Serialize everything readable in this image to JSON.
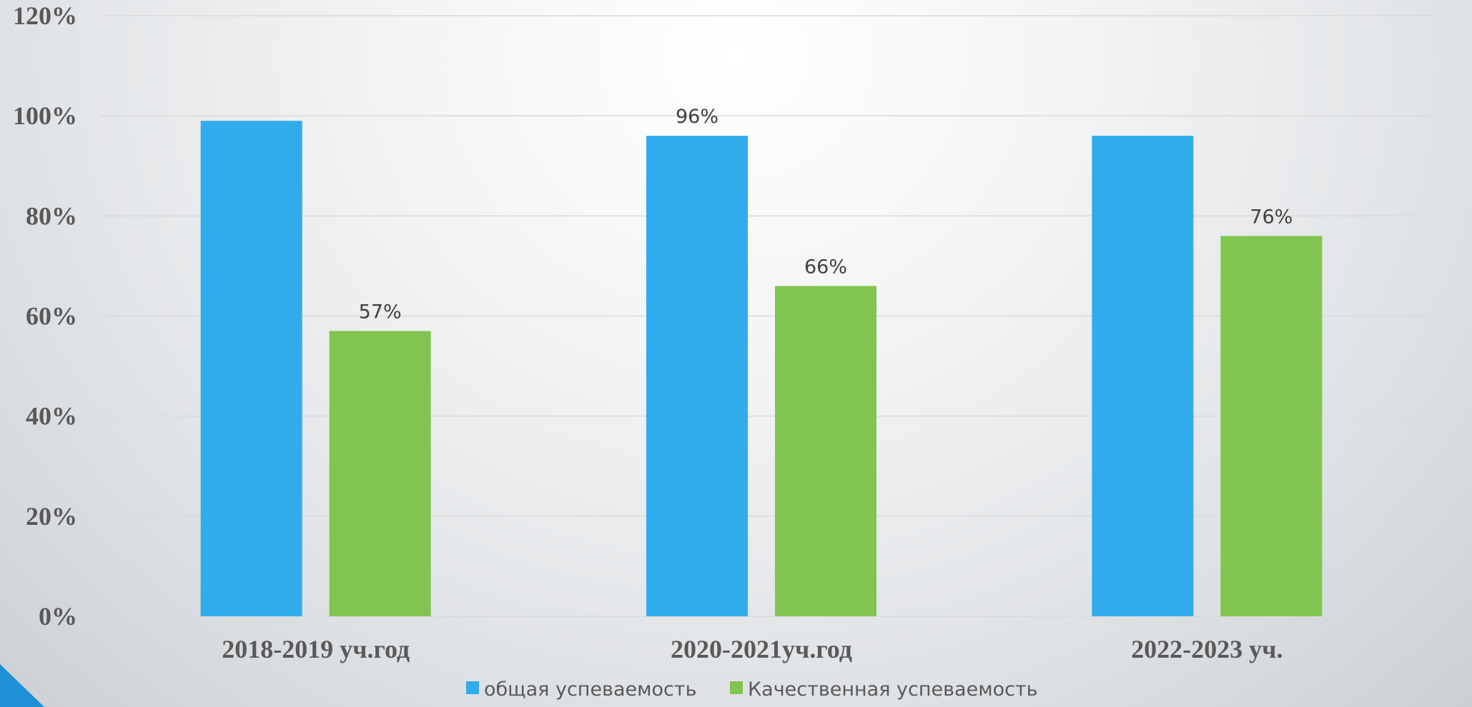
{
  "chart_data": {
    "type": "bar",
    "categories": [
      "2018-2019 уч.год",
      "2020-2021уч.год",
      "2022-2023 уч."
    ],
    "series": [
      {
        "name": "общая успеваемость",
        "values": [
          99,
          96,
          96
        ],
        "data_labels": [
          "",
          "96%",
          ""
        ],
        "color": "#30acec"
      },
      {
        "name": "Качественная успеваемость",
        "values": [
          57,
          66,
          76
        ],
        "data_labels": [
          "57%",
          "66%",
          "76%"
        ],
        "color": "#82c450"
      }
    ],
    "y_ticks": [
      "0%",
      "20%",
      "40%",
      "60%",
      "80%",
      "100%",
      "120%"
    ],
    "ylim": [
      0,
      120
    ],
    "title": "",
    "xlabel": "",
    "ylabel": "",
    "grid": true,
    "legend_position": "bottom"
  },
  "colors": {
    "axis_text": "#595959",
    "gridline": "#d9d9d9",
    "corner_accent": "#1f8fd6"
  }
}
